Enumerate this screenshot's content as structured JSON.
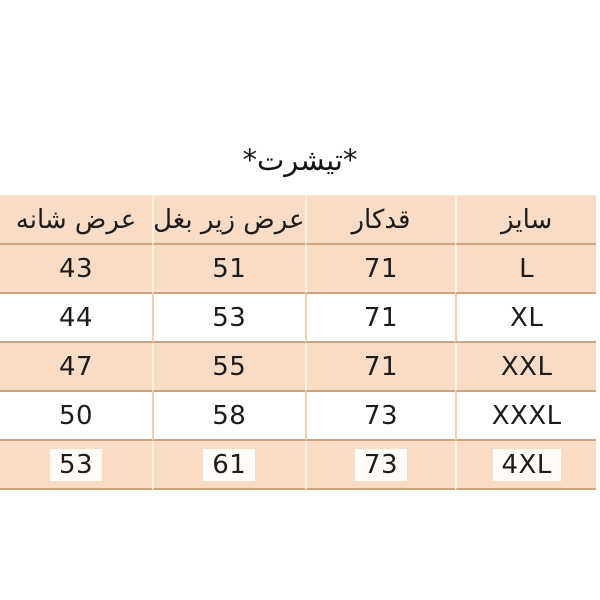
{
  "page": {
    "background_color": "#ffffff",
    "language": "fa",
    "direction": "rtl"
  },
  "title": "*تیشرت*",
  "colors": {
    "row_peach": "#f9dcc6",
    "row_white": "#ffffff",
    "gridline": "#cda47f",
    "text": "#1c1c1c"
  },
  "table": {
    "direction": "rtl",
    "header": [
      "سایز",
      "قدکار",
      "عرض زیر بغل",
      "عرض شانه"
    ],
    "rows": [
      {
        "tone": "peach",
        "highlight": false,
        "cells": [
          "L",
          "71",
          "51",
          "43"
        ]
      },
      {
        "tone": "white",
        "highlight": false,
        "cells": [
          "XL",
          "71",
          "53",
          "44"
        ]
      },
      {
        "tone": "peach",
        "highlight": false,
        "cells": [
          "XXL",
          "71",
          "55",
          "47"
        ]
      },
      {
        "tone": "white",
        "highlight": false,
        "cells": [
          "XXXL",
          "73",
          "58",
          "50"
        ]
      },
      {
        "tone": "peach",
        "highlight": true,
        "cells": [
          "4XL",
          "73",
          "61",
          "53"
        ]
      }
    ]
  },
  "chart_data": {
    "type": "table",
    "title": "*تیشرت*",
    "direction": "rtl",
    "columns": [
      "سایز",
      "قدکار",
      "عرض زیر بغل",
      "عرض شانه"
    ],
    "column_meanings": [
      "size",
      "garment length",
      "underarm width",
      "shoulder width"
    ],
    "rows": [
      [
        "L",
        71,
        51,
        43
      ],
      [
        "XL",
        71,
        53,
        44
      ],
      [
        "XXL",
        71,
        55,
        47
      ],
      [
        "XXXL",
        73,
        58,
        50
      ],
      [
        "4XL",
        73,
        61,
        53
      ]
    ]
  }
}
